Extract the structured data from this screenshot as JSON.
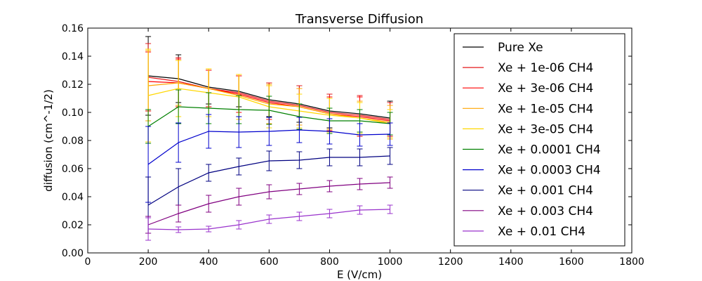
{
  "chart_data": {
    "type": "line",
    "title": "Transverse Diffusion",
    "xlabel": "E (V/cm)",
    "ylabel": "diffusion (cm^-1/2)",
    "xlim": [
      0,
      1800
    ],
    "ylim": [
      0.0,
      0.16
    ],
    "xticks": [
      0,
      200,
      400,
      600,
      800,
      1000,
      1200,
      1400,
      1600,
      1800
    ],
    "yticks": [
      0.0,
      0.02,
      0.04,
      0.06,
      0.08,
      0.1,
      0.12,
      0.14,
      0.16
    ],
    "xtick_labels": [
      "0",
      "200",
      "400",
      "600",
      "800",
      "1000",
      "1200",
      "1400",
      "1600",
      "1800"
    ],
    "ytick_labels": [
      "0.00",
      "0.02",
      "0.04",
      "0.06",
      "0.08",
      "0.10",
      "0.12",
      "0.14",
      "0.16"
    ],
    "grid": false,
    "legend_position": "top-right",
    "x": [
      200,
      300,
      400,
      500,
      600,
      700,
      800,
      900,
      1000
    ],
    "series": [
      {
        "name": "Pure Xe",
        "color": "#000000",
        "values": [
          0.126,
          0.124,
          0.118,
          0.115,
          0.109,
          0.106,
          0.101,
          0.099,
          0.096
        ],
        "errors": [
          0.028,
          0.017,
          0.012,
          0.011,
          0.012,
          0.013,
          0.012,
          0.013,
          0.012
        ]
      },
      {
        "name": "Xe + 1e-06 CH4",
        "color": "#e41a1c",
        "values": [
          0.125,
          0.122,
          0.117,
          0.114,
          0.108,
          0.105,
          0.1,
          0.098,
          0.095
        ],
        "errors": [
          0.024,
          0.017,
          0.013,
          0.012,
          0.013,
          0.014,
          0.013,
          0.014,
          0.012
        ]
      },
      {
        "name": "Xe + 3e-06 CH4",
        "color": "#ff0000",
        "values": [
          0.122,
          0.121,
          0.117,
          0.113,
          0.107,
          0.104,
          0.099,
          0.097,
          0.094
        ],
        "errors": [
          0.021,
          0.017,
          0.013,
          0.013,
          0.012,
          0.013,
          0.012,
          0.014,
          0.011
        ]
      },
      {
        "name": "Xe + 1e-05 CH4",
        "color": "#ffa500",
        "values": [
          0.119,
          0.121,
          0.117,
          0.112,
          0.106,
          0.104,
          0.099,
          0.096,
          0.093
        ],
        "errors": [
          0.025,
          0.016,
          0.014,
          0.015,
          0.014,
          0.013,
          0.011,
          0.012,
          0.012
        ]
      },
      {
        "name": "Xe + 3e-05 CH4",
        "color": "#ffd700",
        "values": [
          0.112,
          0.117,
          0.114,
          0.111,
          0.104,
          0.101,
          0.098,
          0.096,
          0.092
        ],
        "errors": [
          0.033,
          0.02,
          0.017,
          0.016,
          0.015,
          0.012,
          0.012,
          0.011,
          0.01
        ]
      },
      {
        "name": "Xe + 0.0001 CH4",
        "color": "#008000",
        "values": [
          0.09,
          0.104,
          0.103,
          0.102,
          0.1015,
          0.097,
          0.094,
          0.094,
          0.092
        ],
        "errors": [
          0.012,
          0.012,
          0.011,
          0.01,
          0.01,
          0.009,
          0.009,
          0.008,
          0.008
        ]
      },
      {
        "name": "Xe + 0.0003 CH4",
        "color": "#0000cd",
        "values": [
          0.063,
          0.0785,
          0.0865,
          0.086,
          0.0865,
          0.0875,
          0.0865,
          0.084,
          0.0845
        ],
        "errors": [
          0.027,
          0.014,
          0.012,
          0.011,
          0.01,
          0.009,
          0.009,
          0.008,
          0.008
        ]
      },
      {
        "name": "Xe + 0.001 CH4",
        "color": "#000080",
        "values": [
          0.034,
          0.047,
          0.057,
          0.0615,
          0.0655,
          0.066,
          0.068,
          0.068,
          0.069
        ],
        "errors": [
          0.02,
          0.013,
          0.006,
          0.006,
          0.007,
          0.006,
          0.006,
          0.006,
          0.006
        ]
      },
      {
        "name": "Xe + 0.003 CH4",
        "color": "#800080",
        "values": [
          0.02,
          0.028,
          0.035,
          0.04,
          0.0435,
          0.0455,
          0.0475,
          0.049,
          0.05
        ],
        "errors": [
          0.006,
          0.006,
          0.006,
          0.006,
          0.005,
          0.004,
          0.004,
          0.004,
          0.004
        ]
      },
      {
        "name": "Xe + 0.01 CH4",
        "color": "#9932cc",
        "values": [
          0.017,
          0.0165,
          0.017,
          0.02,
          0.024,
          0.026,
          0.028,
          0.0305,
          0.031
        ],
        "errors": [
          0.008,
          0.002,
          0.002,
          0.003,
          0.003,
          0.003,
          0.003,
          0.003,
          0.003
        ]
      }
    ]
  }
}
